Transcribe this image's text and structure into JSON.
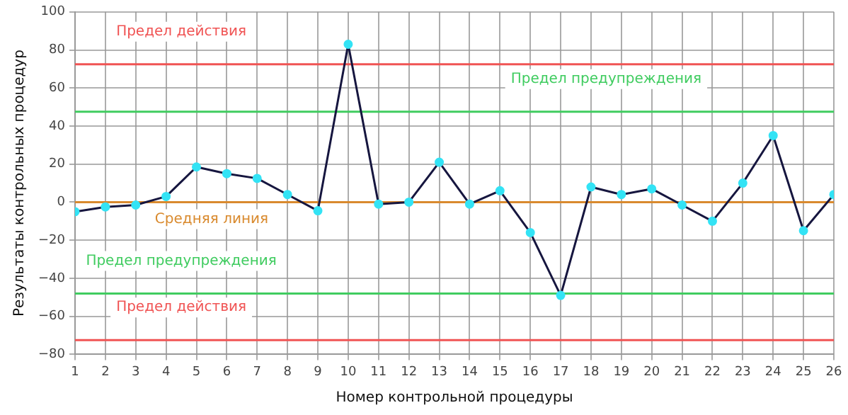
{
  "chart_data": {
    "type": "line",
    "xlabel": "Номер контрольной процедуры",
    "ylabel": "Результаты контрольных процедур",
    "x": [
      1,
      2,
      3,
      4,
      5,
      6,
      7,
      8,
      9,
      10,
      11,
      12,
      13,
      14,
      15,
      16,
      17,
      18,
      19,
      20,
      21,
      22,
      23,
      24,
      25,
      26
    ],
    "series": [
      {
        "color": "#16163f",
        "colors": [
          "#33e3f5",
          "#33e3f5",
          "#33e3f5",
          "#33e3f5",
          "#33e3f5",
          "#33e3f5",
          "#33e3f5",
          "#33e3f5",
          "#33e3f5",
          "#33e3f5",
          "#33e3f5",
          "#33e3f5",
          "#33e3f5",
          "#33e3f5",
          "#33e3f5",
          "#33e3f5",
          "#33e3f5",
          "#33e3f5",
          "#33e3f5",
          "#33e3f5",
          "#33e3f5",
          "#33e3f5",
          "#33e3f5",
          "#33e3f5",
          "#33e3f5",
          "#33e3f5"
        ],
        "values": [
          -5,
          -2.5,
          -1.5,
          3,
          18.5,
          15,
          12.5,
          4,
          -4.5,
          83,
          -1,
          0,
          21,
          -1,
          6,
          -16,
          -49,
          8,
          4,
          7,
          -1.5,
          -10,
          10,
          35,
          -15,
          4
        ]
      }
    ],
    "marker": "circle",
    "xlim": [
      1,
      26
    ],
    "xticks": [
      1,
      2,
      3,
      4,
      5,
      6,
      7,
      8,
      9,
      10,
      11,
      12,
      13,
      14,
      15,
      16,
      17,
      18,
      19,
      20,
      21,
      22,
      23,
      24,
      25,
      26
    ],
    "ylim": [
      -80,
      100
    ],
    "yticks": [
      -80,
      -60,
      -40,
      -20,
      0,
      20,
      40,
      60,
      80,
      100
    ],
    "grid": true,
    "ref_lines": [
      {
        "axis": "y",
        "value": 72.5,
        "label": "Предел действия",
        "color": "#f05454"
      },
      {
        "axis": "y",
        "value": 47.5,
        "label": "Предел предупреждения",
        "color": "#40cc60"
      },
      {
        "axis": "y",
        "value": 0,
        "label": "Средняя линия",
        "color": "#d98a2e"
      },
      {
        "axis": "y",
        "value": -48,
        "label": "Предел предупреждения",
        "color": "#40cc60"
      },
      {
        "axis": "y",
        "value": -72.5,
        "label": "Предел действия",
        "color": "#f05454"
      }
    ]
  }
}
